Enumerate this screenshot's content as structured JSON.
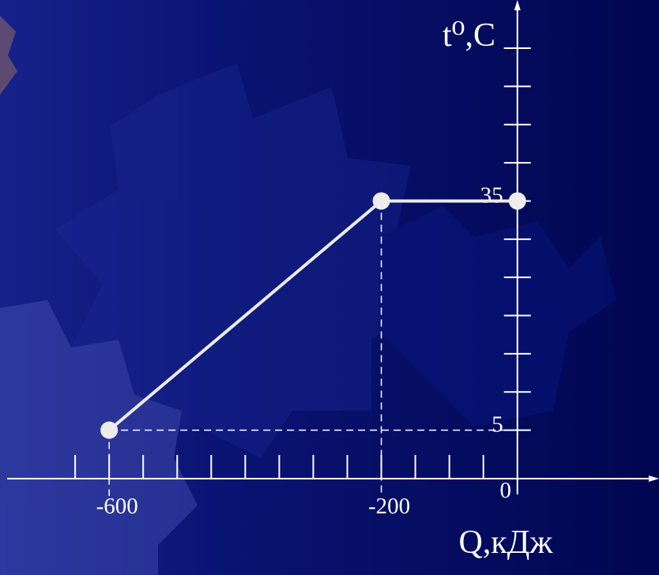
{
  "chart_data": {
    "type": "line",
    "x": [
      -600,
      -200,
      0
    ],
    "series": [
      {
        "color": "#ececec",
        "values": [
          5,
          35,
          35
        ]
      }
    ],
    "xlim": [
      -750,
      200
    ],
    "ylim": [
      0,
      55
    ],
    "xticks": [
      -600,
      -200,
      0
    ],
    "yticks": [
      5,
      35
    ],
    "xminor_ticks": [
      -650,
      -600,
      -550,
      -500,
      -450,
      -400,
      -350,
      -300,
      -250,
      -200,
      -150,
      -100,
      -50
    ],
    "yminor_ticks": [
      5,
      10,
      15,
      20,
      25,
      30,
      35,
      40,
      45,
      50,
      55
    ],
    "x_label": "Q,кДж",
    "y_label": "t⁰,C",
    "guides": true
  }
}
